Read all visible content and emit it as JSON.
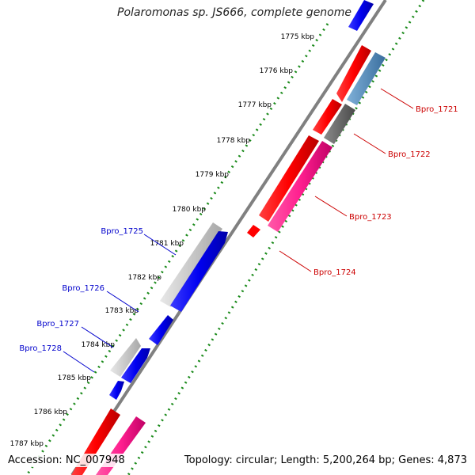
{
  "title": "Polaromonas sp. JS666, complete genome",
  "accession": "Accession: NC_007948",
  "summary": "Topology: circular; Length: 5,200,264 bp; Genes: 4,873",
  "colors": {
    "backbone": "#808080",
    "tick_dots": "#1a8a1a",
    "forward_label": "#cc0000",
    "reverse_label": "#0000cc"
  },
  "ticks": [
    "1775 kbp",
    "1776 kbp",
    "1777 kbp",
    "1778 kbp",
    "1779 kbp",
    "1780 kbp",
    "1781 kbp",
    "1782 kbp",
    "1783 kbp",
    "1784 kbp",
    "1785 kbp",
    "1786 kbp",
    "1787 kbp"
  ],
  "gene_labels_forward": [
    "Bpro_1721",
    "Bpro_1722",
    "Bpro_1723",
    "Bpro_1724"
  ],
  "gene_labels_reverse": [
    "Bpro_1725",
    "Bpro_1726",
    "Bpro_1727",
    "Bpro_1728"
  ]
}
